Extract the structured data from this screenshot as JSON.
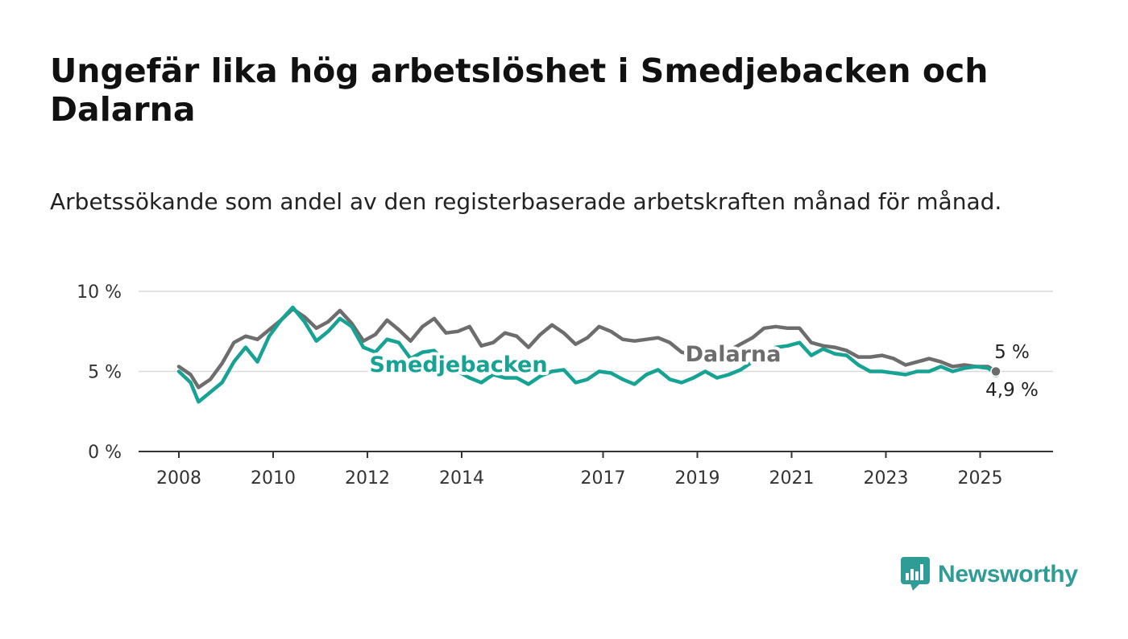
{
  "title": "Ungefär lika hög arbetslöshet i Smedjebacken och Dalarna",
  "subtitle": "Arbetssökande som andel av den registerbaserade arbetskraften månad för månad.",
  "brand": {
    "name": "Newsworthy",
    "color": "#2f9d95"
  },
  "chart_data": {
    "type": "line",
    "x_start": "2008-01",
    "x_end": "2025-05",
    "x_ticks": [
      "2008",
      "2010",
      "2012",
      "2014",
      "2017",
      "2019",
      "2021",
      "2023",
      "2025"
    ],
    "y_ticks": [
      "0 %",
      "5 %",
      "10 %"
    ],
    "ylim": [
      0,
      10
    ],
    "grid": true,
    "series": [
      {
        "name": "Smedjebacken",
        "color": "#16a394",
        "end_label": "4,9 %",
        "points": [
          [
            "2008-01",
            5.0
          ],
          [
            "2008-04",
            4.3
          ],
          [
            "2008-06",
            3.1
          ],
          [
            "2008-09",
            3.7
          ],
          [
            "2008-12",
            4.3
          ],
          [
            "2009-03",
            5.6
          ],
          [
            "2009-06",
            6.5
          ],
          [
            "2009-09",
            5.6
          ],
          [
            "2009-12",
            7.2
          ],
          [
            "2010-03",
            8.2
          ],
          [
            "2010-06",
            9.0
          ],
          [
            "2010-09",
            8.1
          ],
          [
            "2010-12",
            6.9
          ],
          [
            "2011-03",
            7.5
          ],
          [
            "2011-06",
            8.3
          ],
          [
            "2011-09",
            7.8
          ],
          [
            "2011-12",
            6.5
          ],
          [
            "2012-03",
            6.2
          ],
          [
            "2012-06",
            7.0
          ],
          [
            "2012-09",
            6.8
          ],
          [
            "2012-12",
            5.8
          ],
          [
            "2013-03",
            6.2
          ],
          [
            "2013-06",
            6.3
          ],
          [
            "2013-09",
            5.5
          ],
          [
            "2013-12",
            5.0
          ],
          [
            "2014-03",
            4.6
          ],
          [
            "2014-06",
            4.3
          ],
          [
            "2014-09",
            4.8
          ],
          [
            "2014-12",
            4.6
          ],
          [
            "2015-03",
            4.6
          ],
          [
            "2015-06",
            4.2
          ],
          [
            "2015-09",
            4.7
          ],
          [
            "2015-12",
            5.0
          ],
          [
            "2016-03",
            5.1
          ],
          [
            "2016-06",
            4.3
          ],
          [
            "2016-09",
            4.5
          ],
          [
            "2016-12",
            5.0
          ],
          [
            "2017-03",
            4.9
          ],
          [
            "2017-06",
            4.5
          ],
          [
            "2017-09",
            4.2
          ],
          [
            "2017-12",
            4.8
          ],
          [
            "2018-03",
            5.1
          ],
          [
            "2018-06",
            4.5
          ],
          [
            "2018-09",
            4.3
          ],
          [
            "2018-12",
            4.6
          ],
          [
            "2019-03",
            5.0
          ],
          [
            "2019-06",
            4.6
          ],
          [
            "2019-09",
            4.8
          ],
          [
            "2019-12",
            5.1
          ],
          [
            "2020-03",
            5.6
          ],
          [
            "2020-06",
            6.2
          ],
          [
            "2020-09",
            6.5
          ],
          [
            "2020-12",
            6.6
          ],
          [
            "2021-03",
            6.8
          ],
          [
            "2021-06",
            6.0
          ],
          [
            "2021-09",
            6.4
          ],
          [
            "2021-12",
            6.1
          ],
          [
            "2022-03",
            6.0
          ],
          [
            "2022-06",
            5.4
          ],
          [
            "2022-09",
            5.0
          ],
          [
            "2022-12",
            5.0
          ],
          [
            "2023-03",
            4.9
          ],
          [
            "2023-06",
            4.8
          ],
          [
            "2023-09",
            5.0
          ],
          [
            "2023-12",
            5.0
          ],
          [
            "2024-03",
            5.3
          ],
          [
            "2024-06",
            5.0
          ],
          [
            "2024-09",
            5.2
          ],
          [
            "2024-12",
            5.3
          ],
          [
            "2025-03",
            5.2
          ],
          [
            "2025-05",
            4.9
          ]
        ]
      },
      {
        "name": "Dalarna",
        "color": "#6d6d6d",
        "end_label": "5 %",
        "points": [
          [
            "2008-01",
            5.3
          ],
          [
            "2008-04",
            4.8
          ],
          [
            "2008-06",
            4.0
          ],
          [
            "2008-09",
            4.5
          ],
          [
            "2008-12",
            5.5
          ],
          [
            "2009-03",
            6.8
          ],
          [
            "2009-06",
            7.2
          ],
          [
            "2009-09",
            7.0
          ],
          [
            "2009-12",
            7.6
          ],
          [
            "2010-03",
            8.2
          ],
          [
            "2010-06",
            8.9
          ],
          [
            "2010-09",
            8.4
          ],
          [
            "2010-12",
            7.7
          ],
          [
            "2011-03",
            8.1
          ],
          [
            "2011-06",
            8.8
          ],
          [
            "2011-09",
            8.0
          ],
          [
            "2011-12",
            6.9
          ],
          [
            "2012-03",
            7.3
          ],
          [
            "2012-06",
            8.2
          ],
          [
            "2012-09",
            7.6
          ],
          [
            "2012-12",
            6.9
          ],
          [
            "2013-03",
            7.8
          ],
          [
            "2013-06",
            8.3
          ],
          [
            "2013-09",
            7.4
          ],
          [
            "2013-12",
            7.5
          ],
          [
            "2014-03",
            7.8
          ],
          [
            "2014-06",
            6.6
          ],
          [
            "2014-09",
            6.8
          ],
          [
            "2014-12",
            7.4
          ],
          [
            "2015-03",
            7.2
          ],
          [
            "2015-06",
            6.5
          ],
          [
            "2015-09",
            7.3
          ],
          [
            "2015-12",
            7.9
          ],
          [
            "2016-03",
            7.4
          ],
          [
            "2016-06",
            6.7
          ],
          [
            "2016-09",
            7.1
          ],
          [
            "2016-12",
            7.8
          ],
          [
            "2017-03",
            7.5
          ],
          [
            "2017-06",
            7.0
          ],
          [
            "2017-09",
            6.9
          ],
          [
            "2017-12",
            7.0
          ],
          [
            "2018-03",
            7.1
          ],
          [
            "2018-06",
            6.8
          ],
          [
            "2018-09",
            6.2
          ],
          [
            "2018-12",
            6.0
          ],
          [
            "2019-03",
            5.9
          ],
          [
            "2019-06",
            6.1
          ],
          [
            "2019-09",
            6.3
          ],
          [
            "2019-12",
            6.7
          ],
          [
            "2020-03",
            7.1
          ],
          [
            "2020-06",
            7.7
          ],
          [
            "2020-09",
            7.8
          ],
          [
            "2020-12",
            7.7
          ],
          [
            "2021-03",
            7.7
          ],
          [
            "2021-06",
            6.8
          ],
          [
            "2021-09",
            6.6
          ],
          [
            "2021-12",
            6.5
          ],
          [
            "2022-03",
            6.3
          ],
          [
            "2022-06",
            5.9
          ],
          [
            "2022-09",
            5.9
          ],
          [
            "2022-12",
            6.0
          ],
          [
            "2023-03",
            5.8
          ],
          [
            "2023-06",
            5.4
          ],
          [
            "2023-09",
            5.6
          ],
          [
            "2023-12",
            5.8
          ],
          [
            "2024-03",
            5.6
          ],
          [
            "2024-06",
            5.3
          ],
          [
            "2024-09",
            5.4
          ],
          [
            "2024-12",
            5.3
          ],
          [
            "2025-03",
            5.3
          ],
          [
            "2025-05",
            5.0
          ]
        ]
      }
    ]
  }
}
